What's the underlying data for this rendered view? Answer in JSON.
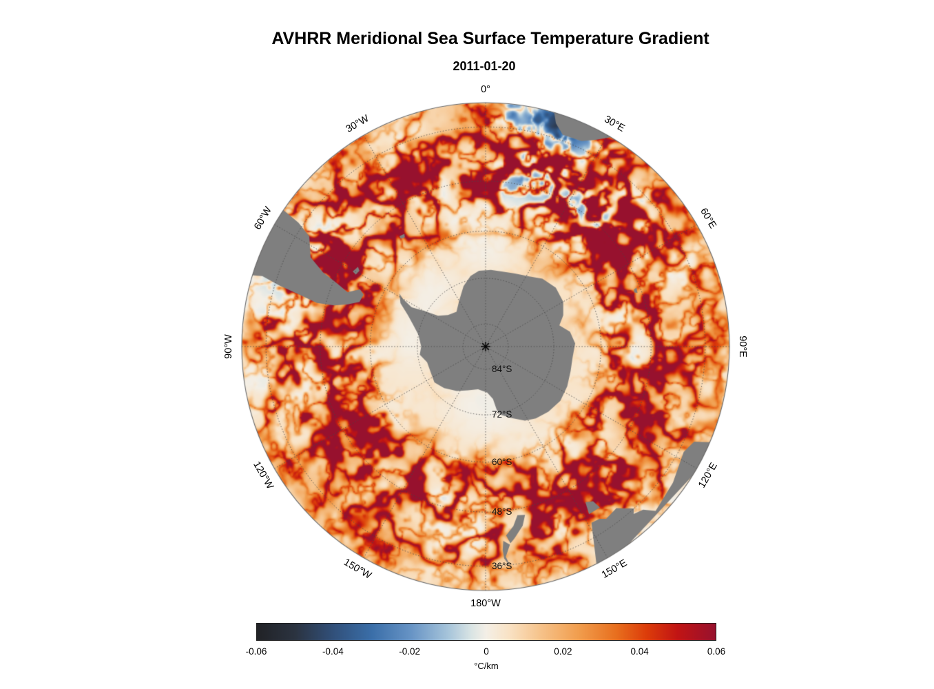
{
  "title": "AVHRR Meridional Sea Surface Temperature Gradient",
  "subtitle": "2011-01-20",
  "map": {
    "longitude_labels": [
      {
        "text": "0°",
        "deg": 0
      },
      {
        "text": "30°E",
        "deg": 30
      },
      {
        "text": "60°E",
        "deg": 60
      },
      {
        "text": "90°E",
        "deg": 90
      },
      {
        "text": "120°E",
        "deg": 120
      },
      {
        "text": "150°E",
        "deg": 150
      },
      {
        "text": "180°W",
        "deg": 180
      },
      {
        "text": "150°W",
        "deg": -150
      },
      {
        "text": "120°W",
        "deg": -120
      },
      {
        "text": "90°W",
        "deg": -90
      },
      {
        "text": "60°W",
        "deg": -60
      },
      {
        "text": "30°W",
        "deg": -30
      }
    ],
    "latitude_labels": [
      {
        "text": "84°S",
        "lat": -84
      },
      {
        "text": "72°S",
        "lat": -72
      },
      {
        "text": "60°S",
        "lat": -60
      },
      {
        "text": "48°S",
        "lat": -48
      },
      {
        "text": "36°S",
        "lat": -36
      }
    ],
    "edge_latitude": -31,
    "land_color": "#7f7f7f",
    "grid_color": "#4a4a4a",
    "background": "#ffffff"
  },
  "colorbar": {
    "label": "°C/km",
    "min": -0.06,
    "max": 0.06,
    "ticks": [
      "-0.06",
      "-0.04",
      "-0.02",
      "0",
      "0.02",
      "0.04",
      "0.06"
    ],
    "stops": [
      {
        "t": -0.06,
        "c": "#212226"
      },
      {
        "t": -0.05,
        "c": "#2b3340"
      },
      {
        "t": -0.04,
        "c": "#31507a"
      },
      {
        "t": -0.03,
        "c": "#3a6ea8"
      },
      {
        "t": -0.02,
        "c": "#6592c4"
      },
      {
        "t": -0.01,
        "c": "#a6c4da"
      },
      {
        "t": -0.004,
        "c": "#d9e4e4"
      },
      {
        "t": 0.0,
        "c": "#f4efe6"
      },
      {
        "t": 0.006,
        "c": "#f9e2c4"
      },
      {
        "t": 0.014,
        "c": "#f6c38b"
      },
      {
        "t": 0.024,
        "c": "#f19e4e"
      },
      {
        "t": 0.034,
        "c": "#e86f1e"
      },
      {
        "t": 0.042,
        "c": "#dc3c0a"
      },
      {
        "t": 0.05,
        "c": "#c11414"
      },
      {
        "t": 0.06,
        "c": "#97112e"
      }
    ]
  },
  "chart_data": {
    "type": "heatmap",
    "title": "AVHRR Meridional Sea Surface Temperature Gradient",
    "subtitle": "2011-01-20",
    "projection": "south polar stereographic",
    "units": "°C/km",
    "value_range": [
      -0.06,
      0.06
    ],
    "colorbar_ticks": [
      -0.06,
      -0.04,
      -0.02,
      0,
      0.02,
      0.04,
      0.06
    ],
    "longitude_gridlines": [
      0,
      30,
      60,
      90,
      120,
      150,
      180,
      -150,
      -120,
      -90,
      -60,
      -30
    ],
    "latitude_gridlines": [
      -84,
      -72,
      -60,
      -48,
      -36
    ],
    "legend_position": "bottom"
  }
}
